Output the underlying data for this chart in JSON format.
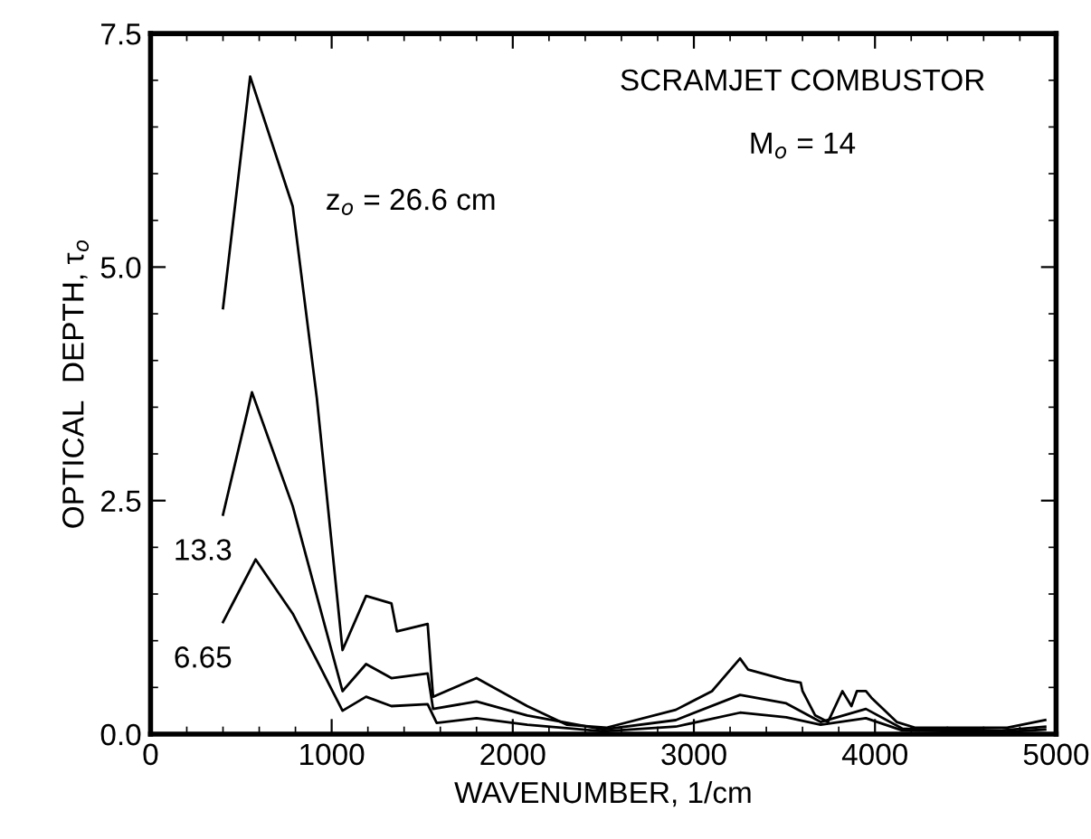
{
  "chart_data": {
    "type": "line",
    "title": "SCRAMJET COMBUSTOR",
    "xlabel": "WAVENUMBER, 1/cm",
    "ylabel": "OPTICAL  DEPTH, τ$_{o}$",
    "xlim": [
      0,
      5000
    ],
    "xticks": [
      0,
      1000,
      2000,
      3000,
      4000,
      5000
    ],
    "ylim": [
      0,
      7.5
    ],
    "yticks": [
      {
        "value": 0,
        "label": "0.0"
      },
      2.5,
      {
        "value": 5,
        "label": "5.0"
      },
      7.5
    ],
    "grid": false,
    "legend": false,
    "marker": "none",
    "line_style": "solid",
    "annotations": [
      "M$_{o}$ = 14"
    ],
    "series": [
      {
        "name": "z$_{o}$ = 26.6 cm",
        "color": "#000000",
        "x": [
          400,
          550,
          785,
          918,
          1060,
          1190,
          1330,
          1360,
          1530,
          1560,
          1800,
          2080,
          2300,
          2520,
          2900,
          3100,
          3255,
          3300,
          3510,
          3590,
          3600,
          3670,
          3740,
          3820,
          3870,
          3900,
          3950,
          3980,
          4120,
          4220,
          4730,
          4940
        ],
        "values": [
          4.56,
          7.04,
          5.65,
          3.6,
          0.9,
          1.48,
          1.4,
          1.1,
          1.18,
          0.4,
          0.6,
          0.3,
          0.1,
          0.07,
          0.26,
          0.46,
          0.81,
          0.69,
          0.58,
          0.55,
          0.46,
          0.2,
          0.13,
          0.46,
          0.3,
          0.46,
          0.46,
          0.39,
          0.13,
          0.07,
          0.07,
          0.15
        ]
      },
      {
        "name": "13.3",
        "color": "#000000",
        "x": [
          400,
          560,
          785,
          918,
          1060,
          1190,
          1330,
          1530,
          1560,
          1800,
          2080,
          2500,
          2900,
          3255,
          3510,
          3700,
          3950,
          4150,
          4700,
          4940
        ],
        "values": [
          2.35,
          3.66,
          2.44,
          1.48,
          0.46,
          0.75,
          0.6,
          0.65,
          0.27,
          0.35,
          0.2,
          0.05,
          0.15,
          0.42,
          0.33,
          0.13,
          0.27,
          0.06,
          0.04,
          0.08
        ]
      },
      {
        "name": "6.65",
        "color": "#000000",
        "x": [
          400,
          580,
          785,
          918,
          1060,
          1190,
          1330,
          1530,
          1580,
          1800,
          2080,
          2500,
          2900,
          3255,
          3510,
          3700,
          3950,
          4150,
          4700,
          4940
        ],
        "values": [
          1.2,
          1.87,
          1.29,
          0.79,
          0.25,
          0.4,
          0.3,
          0.32,
          0.12,
          0.17,
          0.1,
          0.03,
          0.08,
          0.23,
          0.18,
          0.1,
          0.17,
          0.04,
          0.02,
          0.05
        ]
      }
    ]
  }
}
